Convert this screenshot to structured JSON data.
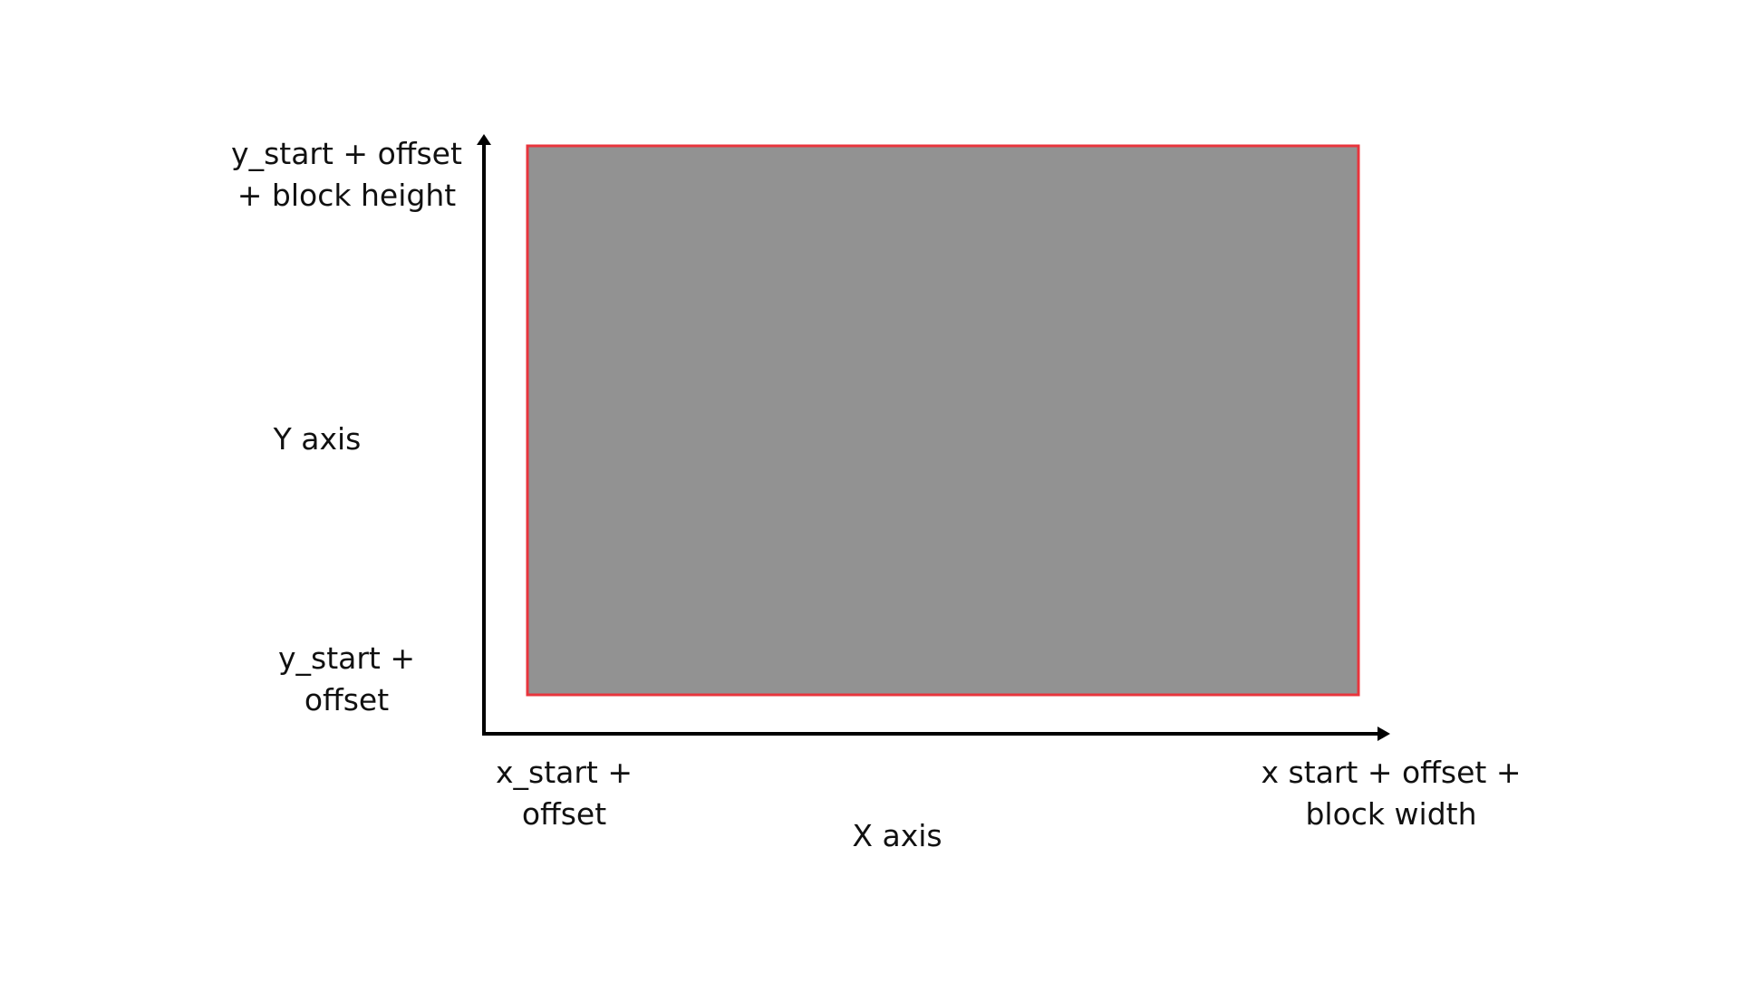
{
  "labels": {
    "y_top": [
      "y_start + offset",
      "+ block height"
    ],
    "y_axis": "Y axis",
    "y_bottom": [
      "y_start +",
      "offset"
    ],
    "x_left": [
      "x_start +",
      "offset"
    ],
    "x_axis": "X axis",
    "x_right": [
      "x start + offset +",
      "block width"
    ]
  },
  "colors": {
    "block_fill": "#929292",
    "block_border": "#e8353d",
    "axis": "#000000"
  }
}
